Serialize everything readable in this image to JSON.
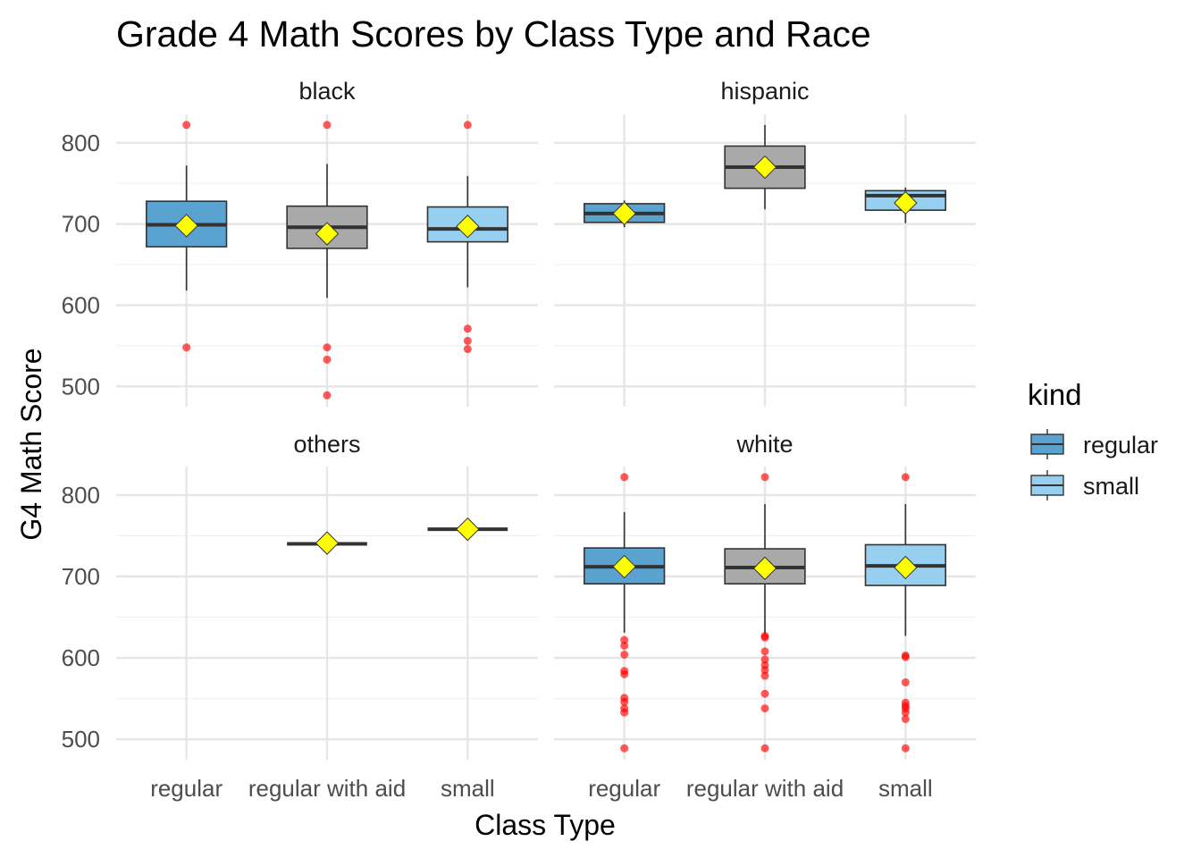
{
  "chart_data": {
    "type": "box",
    "title": "Grade 4 Math Scores by Class Type and Race",
    "xlabel": "Class Type",
    "ylabel": "G4 Math Score",
    "categories": [
      "regular",
      "regular with aid",
      "small"
    ],
    "y_ticks": [
      500,
      600,
      700,
      800
    ],
    "ylim": [
      475,
      835
    ],
    "grid": true,
    "legend": {
      "title": "kind",
      "position": "right",
      "entries": [
        {
          "label": "regular",
          "color": "#5aa3d1"
        },
        {
          "label": "small",
          "color": "#97cff0"
        }
      ]
    },
    "colors": {
      "regular": "#5aa3d1",
      "regular with aid": "#a9a9a9",
      "small": "#97cff0",
      "mean_marker": "#ffff00",
      "outlier": "#ff0000"
    },
    "facets": [
      {
        "label": "black",
        "boxes": [
          {
            "category": "regular",
            "q1": 672,
            "median": 699,
            "q3": 728,
            "whisker_low": 618,
            "whisker_high": 772,
            "mean": 698,
            "outliers": [
              822,
              548
            ]
          },
          {
            "category": "regular with aid",
            "q1": 670,
            "median": 696,
            "q3": 722,
            "whisker_low": 609,
            "whisker_high": 774,
            "mean": 688,
            "outliers": [
              822,
              548,
              533,
              489
            ]
          },
          {
            "category": "small",
            "q1": 678,
            "median": 694,
            "q3": 721,
            "whisker_low": 622,
            "whisker_high": 759,
            "mean": 697,
            "outliers": [
              822,
              571,
              556,
              546
            ]
          }
        ]
      },
      {
        "label": "hispanic",
        "boxes": [
          {
            "category": "regular",
            "q1": 702,
            "median": 713,
            "q3": 725,
            "whisker_low": 696,
            "whisker_high": 729,
            "mean": 713,
            "outliers": []
          },
          {
            "category": "regular with aid",
            "q1": 744,
            "median": 770,
            "q3": 796,
            "whisker_low": 718,
            "whisker_high": 822,
            "mean": 770,
            "outliers": []
          },
          {
            "category": "small",
            "q1": 717,
            "median": 735,
            "q3": 741,
            "whisker_low": 701,
            "whisker_high": 745,
            "mean": 726,
            "outliers": []
          }
        ]
      },
      {
        "label": "others",
        "boxes": [
          {
            "category": "regular with aid",
            "q1": 740,
            "median": 740,
            "q3": 740,
            "whisker_low": 740,
            "whisker_high": 740,
            "mean": 741,
            "outliers": []
          },
          {
            "category": "small",
            "q1": 758,
            "median": 758,
            "q3": 758,
            "whisker_low": 758,
            "whisker_high": 758,
            "mean": 758,
            "outliers": []
          }
        ]
      },
      {
        "label": "white",
        "boxes": [
          {
            "category": "regular",
            "q1": 691,
            "median": 712,
            "q3": 735,
            "whisker_low": 631,
            "whisker_high": 779,
            "mean": 712,
            "outliers": [
              822,
              622,
              615,
              604,
              584,
              580,
              551,
              546,
              538,
              533,
              489
            ]
          },
          {
            "category": "regular with aid",
            "q1": 691,
            "median": 711,
            "q3": 734,
            "whisker_low": 628,
            "whisker_high": 789,
            "mean": 710,
            "outliers": [
              822,
              627,
              625,
              608,
              598,
              591,
              585,
              578,
              556,
              538,
              489
            ]
          },
          {
            "category": "small",
            "q1": 689,
            "median": 713,
            "q3": 739,
            "whisker_low": 627,
            "whisker_high": 789,
            "mean": 711,
            "outliers": [
              822,
              603,
              601,
              570,
              545,
              541,
              538,
              533,
              525,
              489
            ]
          }
        ]
      }
    ]
  }
}
